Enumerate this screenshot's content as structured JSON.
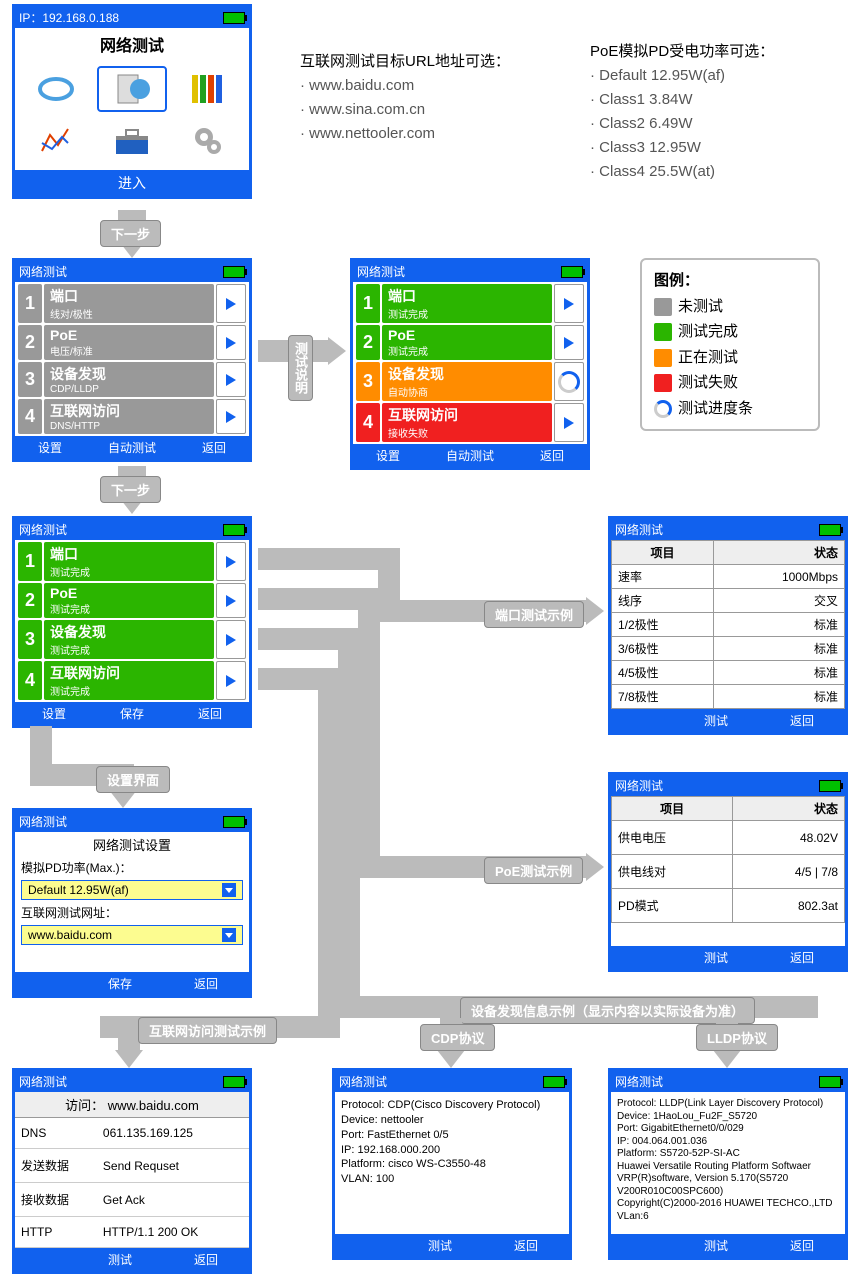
{
  "colors": {
    "blue": "#1161ee",
    "gray": "#999999",
    "green": "#2bb500",
    "orange": "#ff8c00",
    "red": "#f02020",
    "flow": "#bbbbbb"
  },
  "main_menu": {
    "ip": "IP：192.168.0.188",
    "title": "网络测试",
    "enter": "进入"
  },
  "url_info": {
    "header": "互联网测试目标URL地址可选：",
    "items": [
      "· www.baidu.com",
      "· www.sina.com.cn",
      "· www.nettooler.com"
    ]
  },
  "poe_info": {
    "header": "PoE模拟PD受电功率可选：",
    "items": [
      "· Default   12.95W(af)",
      "· Class1    3.84W",
      "· Class2    6.49W",
      "· Class3    12.95W",
      "· Class4    25.5W(at)"
    ]
  },
  "step_labels": {
    "next": "下一步",
    "desc": "测试说明",
    "settings_ui": "设置界面"
  },
  "screen2": {
    "title": "网络测试",
    "rows": [
      {
        "n": "1",
        "t1": "端口",
        "t2": "线对/极性",
        "bg": "#999999"
      },
      {
        "n": "2",
        "t1": "PoE",
        "t2": "电压/标准",
        "bg": "#999999"
      },
      {
        "n": "3",
        "t1": "设备发现",
        "t2": "CDP/LLDP",
        "bg": "#999999"
      },
      {
        "n": "4",
        "t1": "互联网访问",
        "t2": "DNS/HTTP",
        "bg": "#999999"
      }
    ],
    "footer": [
      "设置",
      "自动测试",
      "返回"
    ]
  },
  "screen3": {
    "title": "网络测试",
    "rows": [
      {
        "n": "1",
        "t1": "端口",
        "t2": "测试完成",
        "bg": "#2bb500"
      },
      {
        "n": "2",
        "t1": "PoE",
        "t2": "测试完成",
        "bg": "#2bb500"
      },
      {
        "n": "3",
        "t1": "设备发现",
        "t2": "自动协商",
        "bg": "#ff8c00",
        "spinner": true
      },
      {
        "n": "4",
        "t1": "互联网访问",
        "t2": "接收失败",
        "bg": "#f02020"
      }
    ],
    "footer": [
      "设置",
      "自动测试",
      "返回"
    ]
  },
  "legend": {
    "title": "图例：",
    "items": [
      {
        "color": "#999999",
        "label": "未测试"
      },
      {
        "color": "#2bb500",
        "label": "测试完成"
      },
      {
        "color": "#ff8c00",
        "label": "正在测试"
      },
      {
        "color": "#f02020",
        "label": "测试失败"
      },
      {
        "spinner": true,
        "label": "测试进度条"
      }
    ]
  },
  "screen4": {
    "title": "网络测试",
    "rows": [
      {
        "n": "1",
        "t1": "端口",
        "t2": "测试完成",
        "bg": "#2bb500"
      },
      {
        "n": "2",
        "t1": "PoE",
        "t2": "测试完成",
        "bg": "#2bb500"
      },
      {
        "n": "3",
        "t1": "设备发现",
        "t2": "测试完成",
        "bg": "#2bb500"
      },
      {
        "n": "4",
        "t1": "互联网访问",
        "t2": "测试完成",
        "bg": "#2bb500"
      }
    ],
    "footer": [
      "设置",
      "保存",
      "返回"
    ]
  },
  "settings_screen": {
    "title": "网络测试",
    "subtitle": "网络测试设置",
    "pd_label": "模拟PD功率(Max.)：",
    "pd_value": "Default 12.95W(af)",
    "url_label": "互联网测试网址：",
    "url_value": "www.baidu.com",
    "footer": [
      "保存",
      "返回"
    ]
  },
  "port_example_label": "端口测试示例",
  "port_table": {
    "title": "网络测试",
    "head": [
      "项目",
      "状态"
    ],
    "rows": [
      [
        "速率",
        "1000Mbps"
      ],
      [
        "线序",
        "交叉"
      ],
      [
        "1/2极性",
        "标准"
      ],
      [
        "3/6极性",
        "标准"
      ],
      [
        "4/5极性",
        "标准"
      ],
      [
        "7/8极性",
        "标准"
      ]
    ],
    "footer": [
      "测试",
      "返回"
    ]
  },
  "poe_example_label": "PoE测试示例",
  "poe_table": {
    "title": "网络测试",
    "head": [
      "项目",
      "状态"
    ],
    "rows": [
      [
        "供电电压",
        "48.02V"
      ],
      [
        "供电线对",
        "4/5 | 7/8"
      ],
      [
        "PD模式",
        "802.3at"
      ]
    ],
    "footer": [
      "测试",
      "返回"
    ]
  },
  "discovery_label": "设备发现信息示例（显示内容以实际设备为准）",
  "cdp_label": "CDP协议",
  "lldp_label": "LLDP协议",
  "internet_example_label": "互联网访问测试示例",
  "internet_screen": {
    "title": "网络测试",
    "visit": "访问： www.baidu.com",
    "rows": [
      [
        "DNS",
        "061.135.169.125"
      ],
      [
        "发送数据",
        "Send Requset"
      ],
      [
        "接收数据",
        "Get Ack"
      ],
      [
        "HTTP",
        "HTTP/1.1  200  OK"
      ]
    ],
    "footer": [
      "测试",
      "返回"
    ]
  },
  "cdp_screen": {
    "title": "网络测试",
    "lines": [
      "Protocol: CDP(Cisco Discovery Protocol)",
      "Device: nettooler",
      "Port: FastEthernet 0/5",
      "IP: 192.168.000.200",
      "Platform: cisco WS-C3550-48",
      "VLAN: 100"
    ],
    "footer": [
      "测试",
      "返回"
    ]
  },
  "lldp_screen": {
    "title": "网络测试",
    "lines": [
      "Protocol: LLDP(Link Layer Discovery Protocol)",
      "Device: 1HaoLou_Fu2F_S5720",
      "Port: GigabitEthernet0/0/029",
      "IP: 004.064.001.036",
      "Platform: S5720-52P-SI-AC",
      "Huawei Versatile Routing Platform Softwaer",
      "VRP(R)software, Version 5.170(S5720 V200R010C00SPC600)",
      "Copyright(C)2000-2016 HUAWEI TECHCO.,LTD",
      "VLan:6"
    ],
    "footer": [
      "测试",
      "返回"
    ]
  }
}
